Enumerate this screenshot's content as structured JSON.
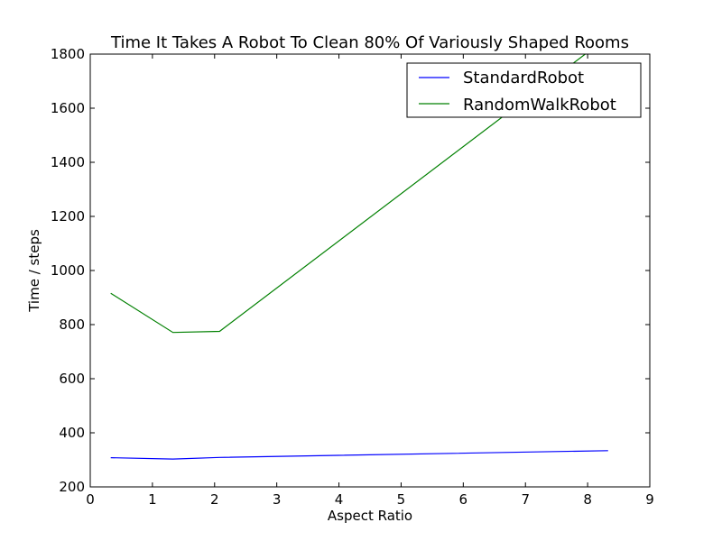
{
  "chart_data": {
    "type": "line",
    "title": "Time It Takes A Robot To Clean 80% Of Variously Shaped Rooms",
    "xlabel": "Aspect Ratio",
    "ylabel": "Time / steps",
    "xlim": [
      0,
      9
    ],
    "ylim": [
      200,
      1800
    ],
    "xticks": [
      0,
      1,
      2,
      3,
      4,
      5,
      6,
      7,
      8,
      9
    ],
    "yticks": [
      200,
      400,
      600,
      800,
      1000,
      1200,
      1400,
      1600,
      1800
    ],
    "grid": false,
    "legend_position": "top-right",
    "series": [
      {
        "name": "StandardRobot",
        "color": "#0000ff",
        "x": [
          0.33,
          1.33,
          2.08,
          8.33
        ],
        "y": [
          308,
          303,
          309,
          334
        ]
      },
      {
        "name": "RandomWalkRobot",
        "color": "#008000",
        "x": [
          0.33,
          1.33,
          2.08,
          8.33
        ],
        "y": [
          916,
          771,
          775,
          1864
        ]
      }
    ]
  }
}
